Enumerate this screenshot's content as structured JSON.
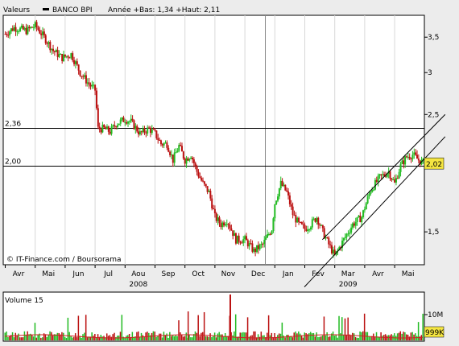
{
  "header": {
    "left_label": "Valeurs",
    "legend_name": "BANCO BPI",
    "range_text": "Année +Bas: 1,34 +Haut: 2,11"
  },
  "watermark": "© IT-Finance.com / Boursorama",
  "volume": {
    "title": "Volume 15",
    "tick_labels": [
      "10M"
    ],
    "last_value": "999K"
  },
  "price_axis": {
    "ticks": [
      {
        "value": 3.5,
        "label": "3,5"
      },
      {
        "value": 3.0,
        "label": "3"
      },
      {
        "value": 2.5,
        "label": "2,5"
      },
      {
        "value": 1.5,
        "label": "1,5"
      }
    ],
    "last_value": 2.02,
    "last_label": "2,02"
  },
  "x_axis": {
    "months": [
      "Avr",
      "Mai",
      "Jun",
      "Jul",
      "Aou",
      "Sep",
      "Oct",
      "Nov",
      "Dec",
      "Jan",
      "Fev",
      "Mar",
      "Avr",
      "Mai"
    ],
    "years": [
      {
        "label": "2008",
        "month_index": 4
      },
      {
        "label": "2009",
        "month_index": 11
      }
    ]
  },
  "colors": {
    "up": "#22bb22",
    "down": "#bb1111",
    "channel": "#000000",
    "volume_ma": "#cc2222"
  },
  "chart_data": {
    "type": "candlestick",
    "title": "BANCO BPI",
    "x_units": "months since Apr 2008",
    "ylim": [
      1.3,
      3.85
    ],
    "y_scale": "log",
    "horizontal_levels": [
      {
        "value": 2.36,
        "label": "2,36"
      },
      {
        "value": 2.0,
        "label": "2,00"
      }
    ],
    "trend_channel": {
      "upper": [
        [
          10.6,
          1.45
        ],
        [
          14.7,
          2.5
        ]
      ],
      "lower": [
        [
          10.0,
          1.18
        ],
        [
          14.7,
          2.27
        ]
      ]
    },
    "price_path": [
      [
        0.0,
        3.55
      ],
      [
        0.3,
        3.65
      ],
      [
        0.7,
        3.6
      ],
      [
        1.0,
        3.68
      ],
      [
        1.3,
        3.5
      ],
      [
        1.6,
        3.3
      ],
      [
        1.9,
        3.2
      ],
      [
        2.2,
        3.25
      ],
      [
        2.5,
        3.0
      ],
      [
        2.8,
        2.85
      ],
      [
        3.0,
        2.78
      ],
      [
        3.1,
        2.35
      ],
      [
        3.3,
        2.35
      ],
      [
        3.5,
        2.32
      ],
      [
        3.7,
        2.4
      ],
      [
        4.0,
        2.45
      ],
      [
        4.2,
        2.42
      ],
      [
        4.5,
        2.3
      ],
      [
        4.8,
        2.35
      ],
      [
        5.0,
        2.3
      ],
      [
        5.2,
        2.2
      ],
      [
        5.4,
        2.2
      ],
      [
        5.6,
        2.05
      ],
      [
        5.8,
        2.18
      ],
      [
        6.0,
        2.05
      ],
      [
        6.2,
        2.1
      ],
      [
        6.4,
        1.95
      ],
      [
        6.6,
        1.85
      ],
      [
        6.8,
        1.78
      ],
      [
        7.0,
        1.6
      ],
      [
        7.2,
        1.55
      ],
      [
        7.4,
        1.58
      ],
      [
        7.7,
        1.45
      ],
      [
        8.0,
        1.45
      ],
      [
        8.3,
        1.38
      ],
      [
        8.6,
        1.42
      ],
      [
        8.9,
        1.52
      ],
      [
        9.0,
        1.7
      ],
      [
        9.2,
        1.85
      ],
      [
        9.4,
        1.78
      ],
      [
        9.6,
        1.62
      ],
      [
        9.8,
        1.55
      ],
      [
        10.0,
        1.52
      ],
      [
        10.2,
        1.55
      ],
      [
        10.4,
        1.6
      ],
      [
        10.6,
        1.5
      ],
      [
        10.8,
        1.42
      ],
      [
        11.0,
        1.35
      ],
      [
        11.3,
        1.45
      ],
      [
        11.6,
        1.55
      ],
      [
        11.9,
        1.6
      ],
      [
        12.2,
        1.8
      ],
      [
        12.5,
        1.9
      ],
      [
        12.8,
        1.95
      ],
      [
        13.0,
        1.85
      ],
      [
        13.2,
        2.0
      ],
      [
        13.4,
        2.08
      ],
      [
        13.6,
        2.1
      ],
      [
        13.8,
        2.05
      ],
      [
        14.0,
        2.02
      ]
    ]
  }
}
